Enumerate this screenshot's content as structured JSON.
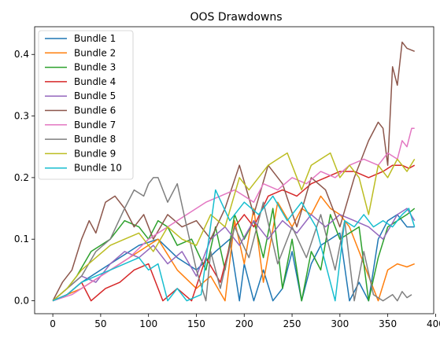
{
  "chart_data": {
    "type": "line",
    "title": "OOS Drawdowns",
    "xlabel": "",
    "ylabel": "",
    "xlim": [
      -19,
      398
    ],
    "ylim": [
      -0.021,
      0.445
    ],
    "xticks": [
      0,
      50,
      100,
      150,
      200,
      250,
      300,
      350,
      400
    ],
    "xtick_labels": [
      "0",
      "50",
      "100",
      "150",
      "200",
      "250",
      "300",
      "350",
      "400"
    ],
    "yticks": [
      0.0,
      0.1,
      0.2,
      0.3,
      0.4
    ],
    "ytick_labels": [
      "0.0",
      "0.1",
      "0.2",
      "0.3",
      "0.4"
    ],
    "grid": false,
    "legend": "upper-left",
    "series": [
      {
        "name": "Bundle 1",
        "color": "#1f77b4",
        "x": [
          0,
          15,
          30,
          50,
          70,
          90,
          110,
          130,
          150,
          170,
          185,
          195,
          200,
          210,
          220,
          230,
          240,
          250,
          260,
          270,
          280,
          290,
          300,
          310,
          320,
          330,
          340,
          350,
          360,
          370,
          378
        ],
        "y": [
          0,
          0.01,
          0.03,
          0.05,
          0.07,
          0.09,
          0.1,
          0.07,
          0.05,
          0.08,
          0.1,
          0.0,
          0.06,
          0.0,
          0.05,
          0.0,
          0.02,
          0.08,
          0.0,
          0.06,
          0.09,
          0.1,
          0.11,
          0.0,
          0.03,
          0.0,
          0.1,
          0.13,
          0.14,
          0.12,
          0.12
        ]
      },
      {
        "name": "Bundle 2",
        "color": "#ff7f0e",
        "x": [
          0,
          15,
          30,
          50,
          70,
          90,
          110,
          130,
          150,
          165,
          180,
          190,
          200,
          210,
          220,
          235,
          250,
          260,
          270,
          280,
          290,
          300,
          310,
          320,
          330,
          340,
          350,
          360,
          370,
          378
        ],
        "y": [
          0,
          0.01,
          0.02,
          0.04,
          0.06,
          0.08,
          0.1,
          0.05,
          0.02,
          0.04,
          0.0,
          0.13,
          0.06,
          0.15,
          0.03,
          0.16,
          0.12,
          0.15,
          0.14,
          0.17,
          0.15,
          0.14,
          0.12,
          0.08,
          0.04,
          0.0,
          0.05,
          0.06,
          0.055,
          0.06
        ]
      },
      {
        "name": "Bundle 3",
        "color": "#2ca02c",
        "x": [
          0,
          15,
          25,
          40,
          60,
          75,
          90,
          100,
          110,
          120,
          130,
          145,
          160,
          170,
          180,
          190,
          200,
          210,
          220,
          230,
          240,
          250,
          260,
          270,
          280,
          290,
          300,
          310,
          320,
          330,
          340,
          350,
          360,
          370,
          378
        ],
        "y": [
          0,
          0.02,
          0.04,
          0.08,
          0.1,
          0.13,
          0.12,
          0.1,
          0.13,
          0.12,
          0.09,
          0.1,
          0.05,
          0.12,
          0.05,
          0.14,
          0.1,
          0.13,
          0.07,
          0.15,
          0.02,
          0.1,
          0.0,
          0.08,
          0.05,
          0.14,
          0.1,
          0.11,
          0.12,
          0.0,
          0.07,
          0.12,
          0.13,
          0.14,
          0.15
        ]
      },
      {
        "name": "Bundle 4",
        "color": "#d62728",
        "x": [
          0,
          15,
          30,
          40,
          55,
          70,
          85,
          100,
          115,
          130,
          145,
          160,
          175,
          190,
          200,
          210,
          225,
          240,
          255,
          270,
          285,
          300,
          315,
          330,
          345,
          355,
          365,
          372,
          378
        ],
        "y": [
          0,
          0.01,
          0.03,
          0.0,
          0.02,
          0.03,
          0.05,
          0.06,
          0.0,
          0.02,
          0.0,
          0.07,
          0.03,
          0.12,
          0.14,
          0.12,
          0.17,
          0.18,
          0.17,
          0.19,
          0.2,
          0.21,
          0.21,
          0.2,
          0.21,
          0.22,
          0.22,
          0.215,
          0.22
        ]
      },
      {
        "name": "Bundle 5",
        "color": "#9467bd",
        "x": [
          0,
          15,
          30,
          45,
          60,
          75,
          90,
          105,
          120,
          135,
          150,
          165,
          180,
          195,
          210,
          225,
          240,
          255,
          270,
          285,
          300,
          315,
          330,
          345,
          360,
          370,
          378
        ],
        "y": [
          0,
          0.02,
          0.04,
          0.03,
          0.06,
          0.08,
          0.07,
          0.09,
          0.06,
          0.08,
          0.04,
          0.1,
          0.12,
          0.09,
          0.13,
          0.1,
          0.13,
          0.11,
          0.14,
          0.12,
          0.14,
          0.13,
          0.12,
          0.1,
          0.14,
          0.15,
          0.13
        ]
      },
      {
        "name": "Bundle 6",
        "color": "#8c564b",
        "x": [
          0,
          10,
          20,
          30,
          38,
          45,
          55,
          65,
          75,
          85,
          95,
          105,
          120,
          135,
          150,
          165,
          180,
          195,
          210,
          225,
          240,
          255,
          270,
          285,
          300,
          315,
          330,
          340,
          345,
          350,
          355,
          360,
          365,
          370,
          378
        ],
        "y": [
          0,
          0.03,
          0.05,
          0.1,
          0.13,
          0.11,
          0.16,
          0.17,
          0.15,
          0.12,
          0.14,
          0.1,
          0.14,
          0.12,
          0.13,
          0.1,
          0.15,
          0.22,
          0.14,
          0.22,
          0.19,
          0.12,
          0.2,
          0.18,
          0.12,
          0.2,
          0.26,
          0.29,
          0.28,
          0.22,
          0.38,
          0.35,
          0.42,
          0.41,
          0.405
        ]
      },
      {
        "name": "Bundle 7",
        "color": "#e377c2",
        "x": [
          0,
          20,
          40,
          60,
          80,
          100,
          120,
          140,
          160,
          175,
          190,
          200,
          210,
          220,
          235,
          250,
          265,
          280,
          295,
          310,
          325,
          340,
          350,
          360,
          365,
          370,
          375,
          378
        ],
        "y": [
          0,
          0.01,
          0.03,
          0.05,
          0.07,
          0.1,
          0.12,
          0.14,
          0.16,
          0.17,
          0.18,
          0.17,
          0.16,
          0.19,
          0.18,
          0.2,
          0.19,
          0.21,
          0.2,
          0.22,
          0.23,
          0.22,
          0.24,
          0.23,
          0.26,
          0.25,
          0.28,
          0.28
        ]
      },
      {
        "name": "Bundle 8",
        "color": "#7f7f7f",
        "x": [
          0,
          15,
          30,
          45,
          60,
          75,
          85,
          95,
          100,
          105,
          110,
          120,
          130,
          140,
          150,
          160,
          165,
          175,
          190,
          205,
          220,
          235,
          250,
          265,
          280,
          295,
          305,
          315,
          325,
          335,
          345,
          355,
          360,
          365,
          370,
          375
        ],
        "y": [
          0,
          0.02,
          0.04,
          0.08,
          0.1,
          0.15,
          0.18,
          0.17,
          0.19,
          0.2,
          0.2,
          0.16,
          0.19,
          0.12,
          0.05,
          0.0,
          0.08,
          0.02,
          0.12,
          0.07,
          0.16,
          0.06,
          0.12,
          0.07,
          0.14,
          0.05,
          0.13,
          0.0,
          0.08,
          0.01,
          0.0,
          0.01,
          0.0,
          0.015,
          0.005,
          0.01
        ]
      },
      {
        "name": "Bundle 9",
        "color": "#bcbd22",
        "x": [
          0,
          15,
          30,
          45,
          60,
          75,
          90,
          105,
          120,
          135,
          150,
          165,
          180,
          195,
          205,
          215,
          225,
          235,
          245,
          250,
          260,
          270,
          280,
          290,
          300,
          310,
          320,
          330,
          340,
          350,
          360,
          370,
          378
        ],
        "y": [
          0,
          0.02,
          0.05,
          0.07,
          0.09,
          0.1,
          0.11,
          0.08,
          0.12,
          0.1,
          0.09,
          0.14,
          0.12,
          0.2,
          0.18,
          0.2,
          0.22,
          0.23,
          0.24,
          0.22,
          0.18,
          0.22,
          0.23,
          0.24,
          0.2,
          0.22,
          0.2,
          0.14,
          0.22,
          0.2,
          0.23,
          0.21,
          0.23
        ]
      },
      {
        "name": "Bundle 10",
        "color": "#17becf",
        "x": [
          0,
          15,
          30,
          45,
          60,
          75,
          90,
          100,
          110,
          120,
          130,
          140,
          155,
          170,
          185,
          200,
          215,
          230,
          245,
          260,
          275,
          285,
          295,
          305,
          315,
          325,
          335,
          345,
          355,
          365,
          372,
          378
        ],
        "y": [
          0,
          0.01,
          0.03,
          0.04,
          0.05,
          0.06,
          0.07,
          0.05,
          0.06,
          0.0,
          0.02,
          0.0,
          0.01,
          0.18,
          0.13,
          0.16,
          0.14,
          0.17,
          0.13,
          0.16,
          0.12,
          0.06,
          0.0,
          0.13,
          0.12,
          0.14,
          0.12,
          0.13,
          0.12,
          0.14,
          0.15,
          0.12
        ]
      }
    ]
  }
}
